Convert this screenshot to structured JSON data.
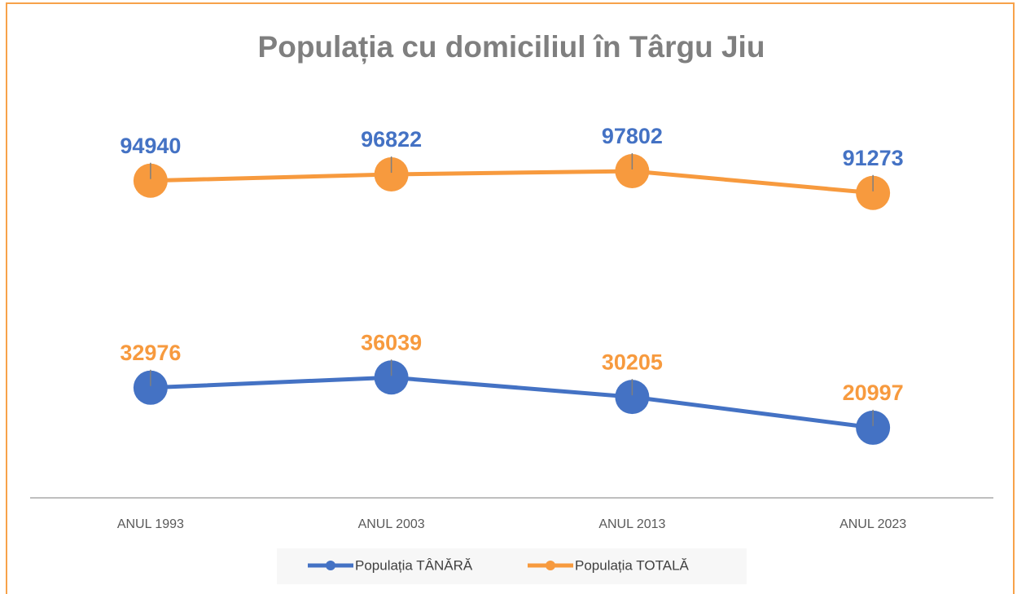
{
  "chart_data": {
    "type": "line",
    "title": "Populația cu domiciliul în Târgu Jiu",
    "categories": [
      "ANUL 1993",
      "ANUL 2003",
      "ANUL 2013",
      "ANUL 2023"
    ],
    "series": [
      {
        "name": "Populația TÂNĂRĂ",
        "color": "#4472c4",
        "label_color": "#f79a3e",
        "values": [
          32976,
          36039,
          30205,
          20997
        ]
      },
      {
        "name": "Populația TOTALĂ",
        "color": "#f79a3e",
        "label_color": "#4472c4",
        "values": [
          94940,
          96822,
          97802,
          91273
        ]
      }
    ],
    "ylim": [
      0,
      120000
    ],
    "legend": "bottom"
  }
}
